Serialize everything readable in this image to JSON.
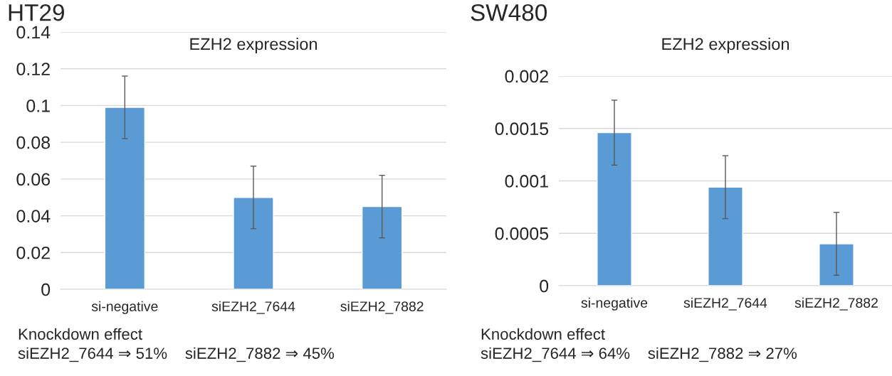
{
  "chart_data": [
    {
      "type": "bar",
      "title": "HT29",
      "subtitle": "EZH2 expression",
      "categories": [
        "si-negative",
        "siEZH2_7644",
        "siEZH2_7882"
      ],
      "values": [
        0.099,
        0.05,
        0.045
      ],
      "errors": [
        0.017,
        0.017,
        0.017
      ],
      "color": "#5b9bd5",
      "ylim": [
        0,
        0.14
      ],
      "yticks": [
        0,
        0.02,
        0.04,
        0.06,
        0.08,
        0.1,
        0.12,
        0.14
      ],
      "grid": "y",
      "annotations": [
        "Knockdown effect",
        "siEZH2_7644 ⇒ 51%    siEZH2_7882 ⇒ 45%"
      ]
    },
    {
      "type": "bar",
      "title": "SW480",
      "subtitle": "EZH2 expression",
      "categories": [
        "si-negative",
        "siEZH2_7644",
        "siEZH2_7882"
      ],
      "values": [
        0.00146,
        0.00094,
        0.0004
      ],
      "errors": [
        0.00031,
        0.0003,
        0.0003
      ],
      "color": "#5b9bd5",
      "ylim": [
        0,
        0.002
      ],
      "yticks": [
        0,
        0.0005,
        0.001,
        0.0015,
        0.002
      ],
      "grid": "y",
      "annotations": [
        "Knockdown effect",
        "siEZH2_7644 ⇒ 64%    siEZH2_7882 ⇒ 27%"
      ]
    }
  ]
}
